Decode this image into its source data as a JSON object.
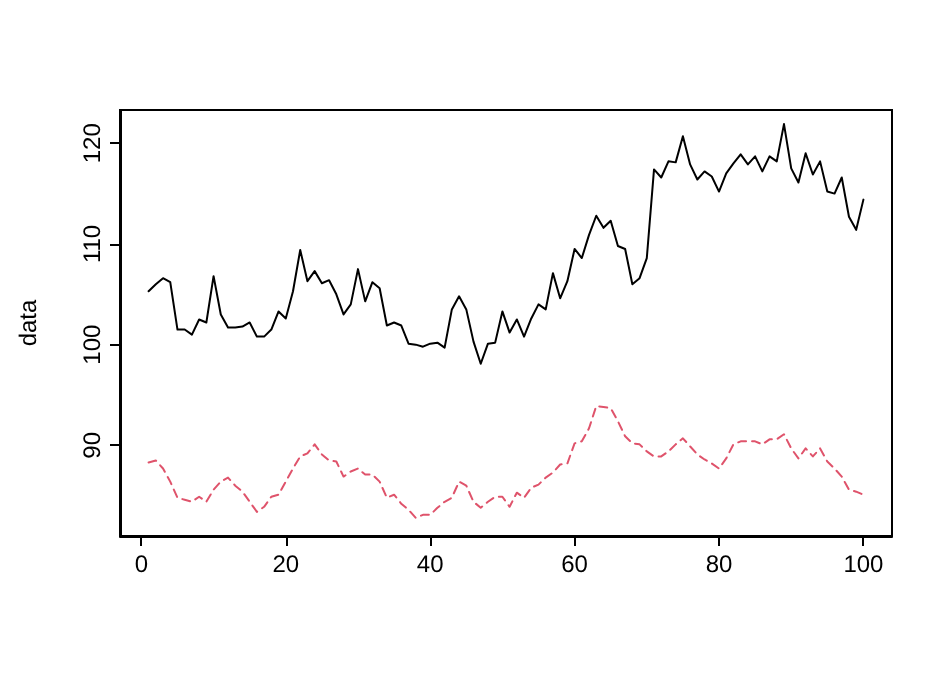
{
  "chart_data": {
    "type": "line",
    "ylabel": "data",
    "xlim": [
      -2.96,
      103.96
    ],
    "ylim": [
      81.0,
      123.3
    ],
    "xticks": [
      0,
      20,
      40,
      60,
      80,
      100
    ],
    "yticks": [
      90,
      100,
      110,
      120
    ],
    "marker": "none",
    "x": [
      1,
      2,
      3,
      4,
      5,
      6,
      7,
      8,
      9,
      10,
      11,
      12,
      13,
      14,
      15,
      16,
      17,
      18,
      19,
      20,
      21,
      22,
      23,
      24,
      25,
      26,
      27,
      28,
      29,
      30,
      31,
      32,
      33,
      34,
      35,
      36,
      37,
      38,
      39,
      40,
      41,
      42,
      43,
      44,
      45,
      46,
      47,
      48,
      49,
      50,
      51,
      52,
      53,
      54,
      55,
      56,
      57,
      58,
      59,
      60,
      61,
      62,
      63,
      64,
      65,
      66,
      67,
      68,
      69,
      70,
      71,
      72,
      73,
      74,
      75,
      76,
      77,
      78,
      79,
      80,
      81,
      82,
      83,
      84,
      85,
      86,
      87,
      88,
      89,
      90,
      91,
      92,
      93,
      94,
      95,
      96,
      97,
      98,
      99,
      100
    ],
    "series": [
      {
        "color": "#000000",
        "line_style": "solid",
        "values": [
          105.3,
          106.0,
          106.6,
          106.2,
          101.5,
          101.5,
          101.0,
          102.5,
          102.2,
          106.8,
          103.0,
          101.7,
          101.7,
          101.8,
          102.2,
          100.8,
          100.8,
          101.5,
          103.3,
          102.6,
          105.3,
          109.4,
          106.3,
          107.3,
          106.1,
          106.4,
          105.0,
          103.0,
          104.0,
          107.5,
          104.3,
          106.2,
          105.6,
          101.9,
          102.2,
          101.9,
          100.1,
          100.0,
          99.8,
          100.1,
          100.2,
          99.7,
          103.5,
          104.8,
          103.5,
          100.3,
          98.1,
          100.1,
          100.2,
          103.3,
          101.2,
          102.5,
          100.8,
          102.6,
          104.0,
          103.5,
          107.1,
          104.6,
          106.3,
          109.5,
          108.6,
          110.9,
          112.8,
          111.6,
          112.3,
          109.8,
          109.5,
          106.0,
          106.6,
          108.6,
          117.4,
          116.6,
          118.2,
          118.1,
          120.7,
          117.9,
          116.4,
          117.2,
          116.7,
          115.2,
          117.0,
          118.0,
          118.9,
          117.9,
          118.7,
          117.2,
          118.7,
          118.2,
          121.9,
          117.5,
          116.1,
          119.0,
          116.9,
          118.2,
          115.2,
          115.0,
          116.6,
          112.7,
          111.4,
          114.4
        ]
      },
      {
        "color": "#df536b",
        "line_style": "dashed",
        "values": [
          88.3,
          88.5,
          87.7,
          86.4,
          84.8,
          84.6,
          84.4,
          84.9,
          84.4,
          85.6,
          86.4,
          86.8,
          86.0,
          85.4,
          84.4,
          83.4,
          83.9,
          84.9,
          85.1,
          86.4,
          87.7,
          88.9,
          89.2,
          90.1,
          89.1,
          88.5,
          88.4,
          86.9,
          87.4,
          87.7,
          87.1,
          87.1,
          86.4,
          84.8,
          85.1,
          84.2,
          83.6,
          82.8,
          83.1,
          83.1,
          83.8,
          84.4,
          84.8,
          86.4,
          86.0,
          84.4,
          83.8,
          84.4,
          84.9,
          84.9,
          83.9,
          85.3,
          84.8,
          85.8,
          86.1,
          86.8,
          87.3,
          88.1,
          88.2,
          90.2,
          90.4,
          91.7,
          93.9,
          93.8,
          93.7,
          92.4,
          90.9,
          90.2,
          90.1,
          89.4,
          88.9,
          88.9,
          89.4,
          90.1,
          90.7,
          89.9,
          89.1,
          88.6,
          88.2,
          87.7,
          88.7,
          90.1,
          90.4,
          90.4,
          90.4,
          90.1,
          90.6,
          90.6,
          91.1,
          89.7,
          88.7,
          89.7,
          88.9,
          89.7,
          88.4,
          87.7,
          86.9,
          85.6,
          85.4,
          85.1
        ]
      }
    ]
  }
}
